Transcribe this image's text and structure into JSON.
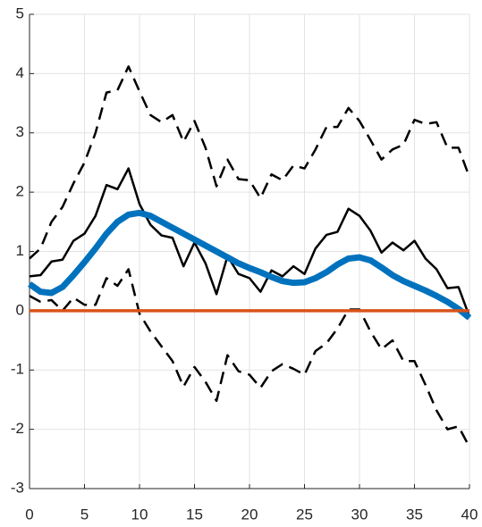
{
  "chart_data": {
    "type": "line",
    "x": [
      0,
      1,
      2,
      3,
      4,
      5,
      6,
      7,
      8,
      9,
      10,
      11,
      12,
      13,
      14,
      15,
      16,
      17,
      18,
      19,
      20,
      21,
      22,
      23,
      24,
      25,
      26,
      27,
      28,
      29,
      30,
      31,
      32,
      33,
      34,
      35,
      36,
      37,
      38,
      39,
      40
    ],
    "series": [
      {
        "color": "#000000",
        "dashed": true,
        "line_width": 2.5,
        "values": [
          0.88,
          1.05,
          1.5,
          1.75,
          2.15,
          2.5,
          3.0,
          3.68,
          3.72,
          4.12,
          3.7,
          3.3,
          3.18,
          3.3,
          2.85,
          3.2,
          2.75,
          2.1,
          2.55,
          2.22,
          2.2,
          1.9,
          2.3,
          2.2,
          2.45,
          2.4,
          2.72,
          3.1,
          3.1,
          3.42,
          3.2,
          2.88,
          2.55,
          2.72,
          2.8,
          3.22,
          3.15,
          3.18,
          2.75,
          2.75,
          2.25
        ]
      },
      {
        "color": "#000000",
        "dashed": true,
        "line_width": 2.5,
        "values": [
          0.25,
          0.15,
          0.18,
          0.0,
          0.22,
          0.1,
          0.1,
          0.55,
          0.42,
          0.7,
          -0.05,
          -0.35,
          -0.6,
          -0.85,
          -1.28,
          -0.95,
          -1.2,
          -1.52,
          -0.75,
          -1.02,
          -1.08,
          -1.3,
          -1.02,
          -0.9,
          -0.98,
          -1.08,
          -0.68,
          -0.55,
          -0.3,
          0.02,
          0.02,
          -0.35,
          -0.65,
          -0.5,
          -0.85,
          -0.85,
          -1.25,
          -1.68,
          -2.0,
          -1.95,
          -2.3
        ]
      },
      {
        "color": "#000000",
        "dashed": false,
        "line_width": 2.5,
        "values": [
          0.58,
          0.6,
          0.83,
          0.86,
          1.18,
          1.3,
          1.6,
          2.12,
          2.05,
          2.4,
          1.8,
          1.45,
          1.27,
          1.23,
          0.75,
          1.15,
          0.8,
          0.28,
          0.92,
          0.62,
          0.55,
          0.32,
          0.68,
          0.58,
          0.75,
          0.62,
          1.05,
          1.28,
          1.33,
          1.72,
          1.6,
          1.35,
          0.98,
          1.15,
          1.02,
          1.18,
          0.88,
          0.7,
          0.38,
          0.4,
          -0.1
        ]
      },
      {
        "color": "#0072bd",
        "dashed": false,
        "line_width": 7,
        "values": [
          0.45,
          0.32,
          0.3,
          0.4,
          0.6,
          0.82,
          1.05,
          1.3,
          1.5,
          1.62,
          1.65,
          1.6,
          1.5,
          1.4,
          1.3,
          1.2,
          1.1,
          1.0,
          0.9,
          0.8,
          0.72,
          0.65,
          0.57,
          0.5,
          0.47,
          0.48,
          0.55,
          0.65,
          0.78,
          0.88,
          0.9,
          0.85,
          0.73,
          0.6,
          0.5,
          0.42,
          0.34,
          0.25,
          0.15,
          0.03,
          -0.12
        ]
      },
      {
        "color": "#d95319",
        "dashed": false,
        "line_width": 3.5,
        "values": [
          0,
          0,
          0,
          0,
          0,
          0,
          0,
          0,
          0,
          0,
          0,
          0,
          0,
          0,
          0,
          0,
          0,
          0,
          0,
          0,
          0,
          0,
          0,
          0,
          0,
          0,
          0,
          0,
          0,
          0,
          0,
          0,
          0,
          0,
          0,
          0,
          0,
          0,
          0,
          0,
          0
        ]
      }
    ],
    "xlim": [
      0,
      40
    ],
    "xticks": [
      0,
      5,
      10,
      15,
      20,
      25,
      30,
      35,
      40
    ],
    "ylim": [
      -3,
      5
    ],
    "yticks": [
      -3,
      -2,
      -1,
      0,
      1,
      2,
      3,
      4,
      5
    ],
    "grid": true
  }
}
